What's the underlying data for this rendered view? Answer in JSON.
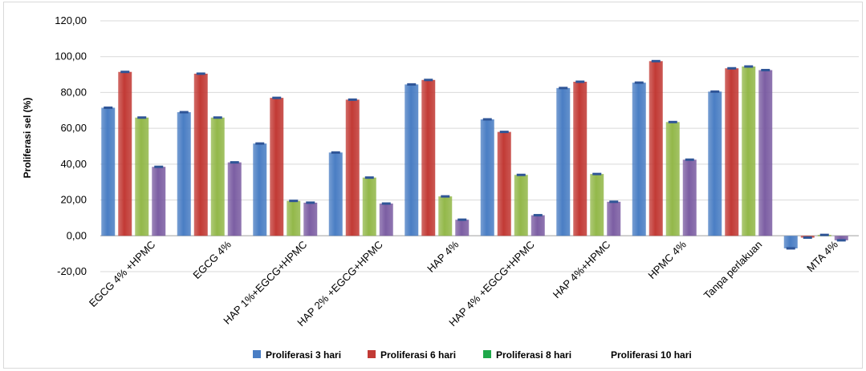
{
  "chart_data": {
    "type": "bar",
    "title": "",
    "xlabel": "",
    "ylabel": "Proliferasi sel (%)",
    "ylim": [
      -20,
      120
    ],
    "yticks": [
      "-20,00",
      "0,00",
      "20,00",
      "40,00",
      "60,00",
      "80,00",
      "100,00",
      "120,00"
    ],
    "grid": true,
    "legend_position": "bottom",
    "error_bars": true,
    "categories": [
      "EGCG 4% +HPMC",
      "EGCG 4%",
      "HAP 1%+EGCG+HPMC",
      "HAP 2% +EGCG+HPMC",
      "HAP 4%",
      "HAP 4% +EGCG+HPMC",
      "HAP 4%+HPMC",
      "HPMC 4%",
      "Tanpa perlakuan",
      "MTA 4%"
    ],
    "series": [
      {
        "name": "Proliferasi 3 hari",
        "color": "#4a7ec4",
        "values": [
          71.5,
          69.0,
          51.5,
          46.5,
          84.5,
          65.0,
          82.5,
          85.5,
          80.5,
          -7.0
        ]
      },
      {
        "name": "Proliferasi 6 hari",
        "color": "#c23a35",
        "values": [
          91.5,
          90.5,
          77.0,
          76.0,
          87.0,
          58.0,
          86.0,
          97.5,
          93.5,
          -1.0
        ]
      },
      {
        "name": "Proliferasi 8 hari",
        "color": "#93b84a",
        "values": [
          66.0,
          66.0,
          19.5,
          32.5,
          22.0,
          34.0,
          34.5,
          63.5,
          94.5,
          0.5
        ]
      },
      {
        "name": "Proliferasi 10 hari",
        "color": "#7c5ea3",
        "values": [
          38.5,
          41.0,
          18.5,
          18.0,
          9.0,
          11.5,
          19.0,
          42.5,
          92.5,
          -2.5
        ]
      }
    ]
  },
  "legend_colors": [
    "#4a7ec4",
    "#c23a35",
    "#1fa84a",
    "#ffffff"
  ]
}
